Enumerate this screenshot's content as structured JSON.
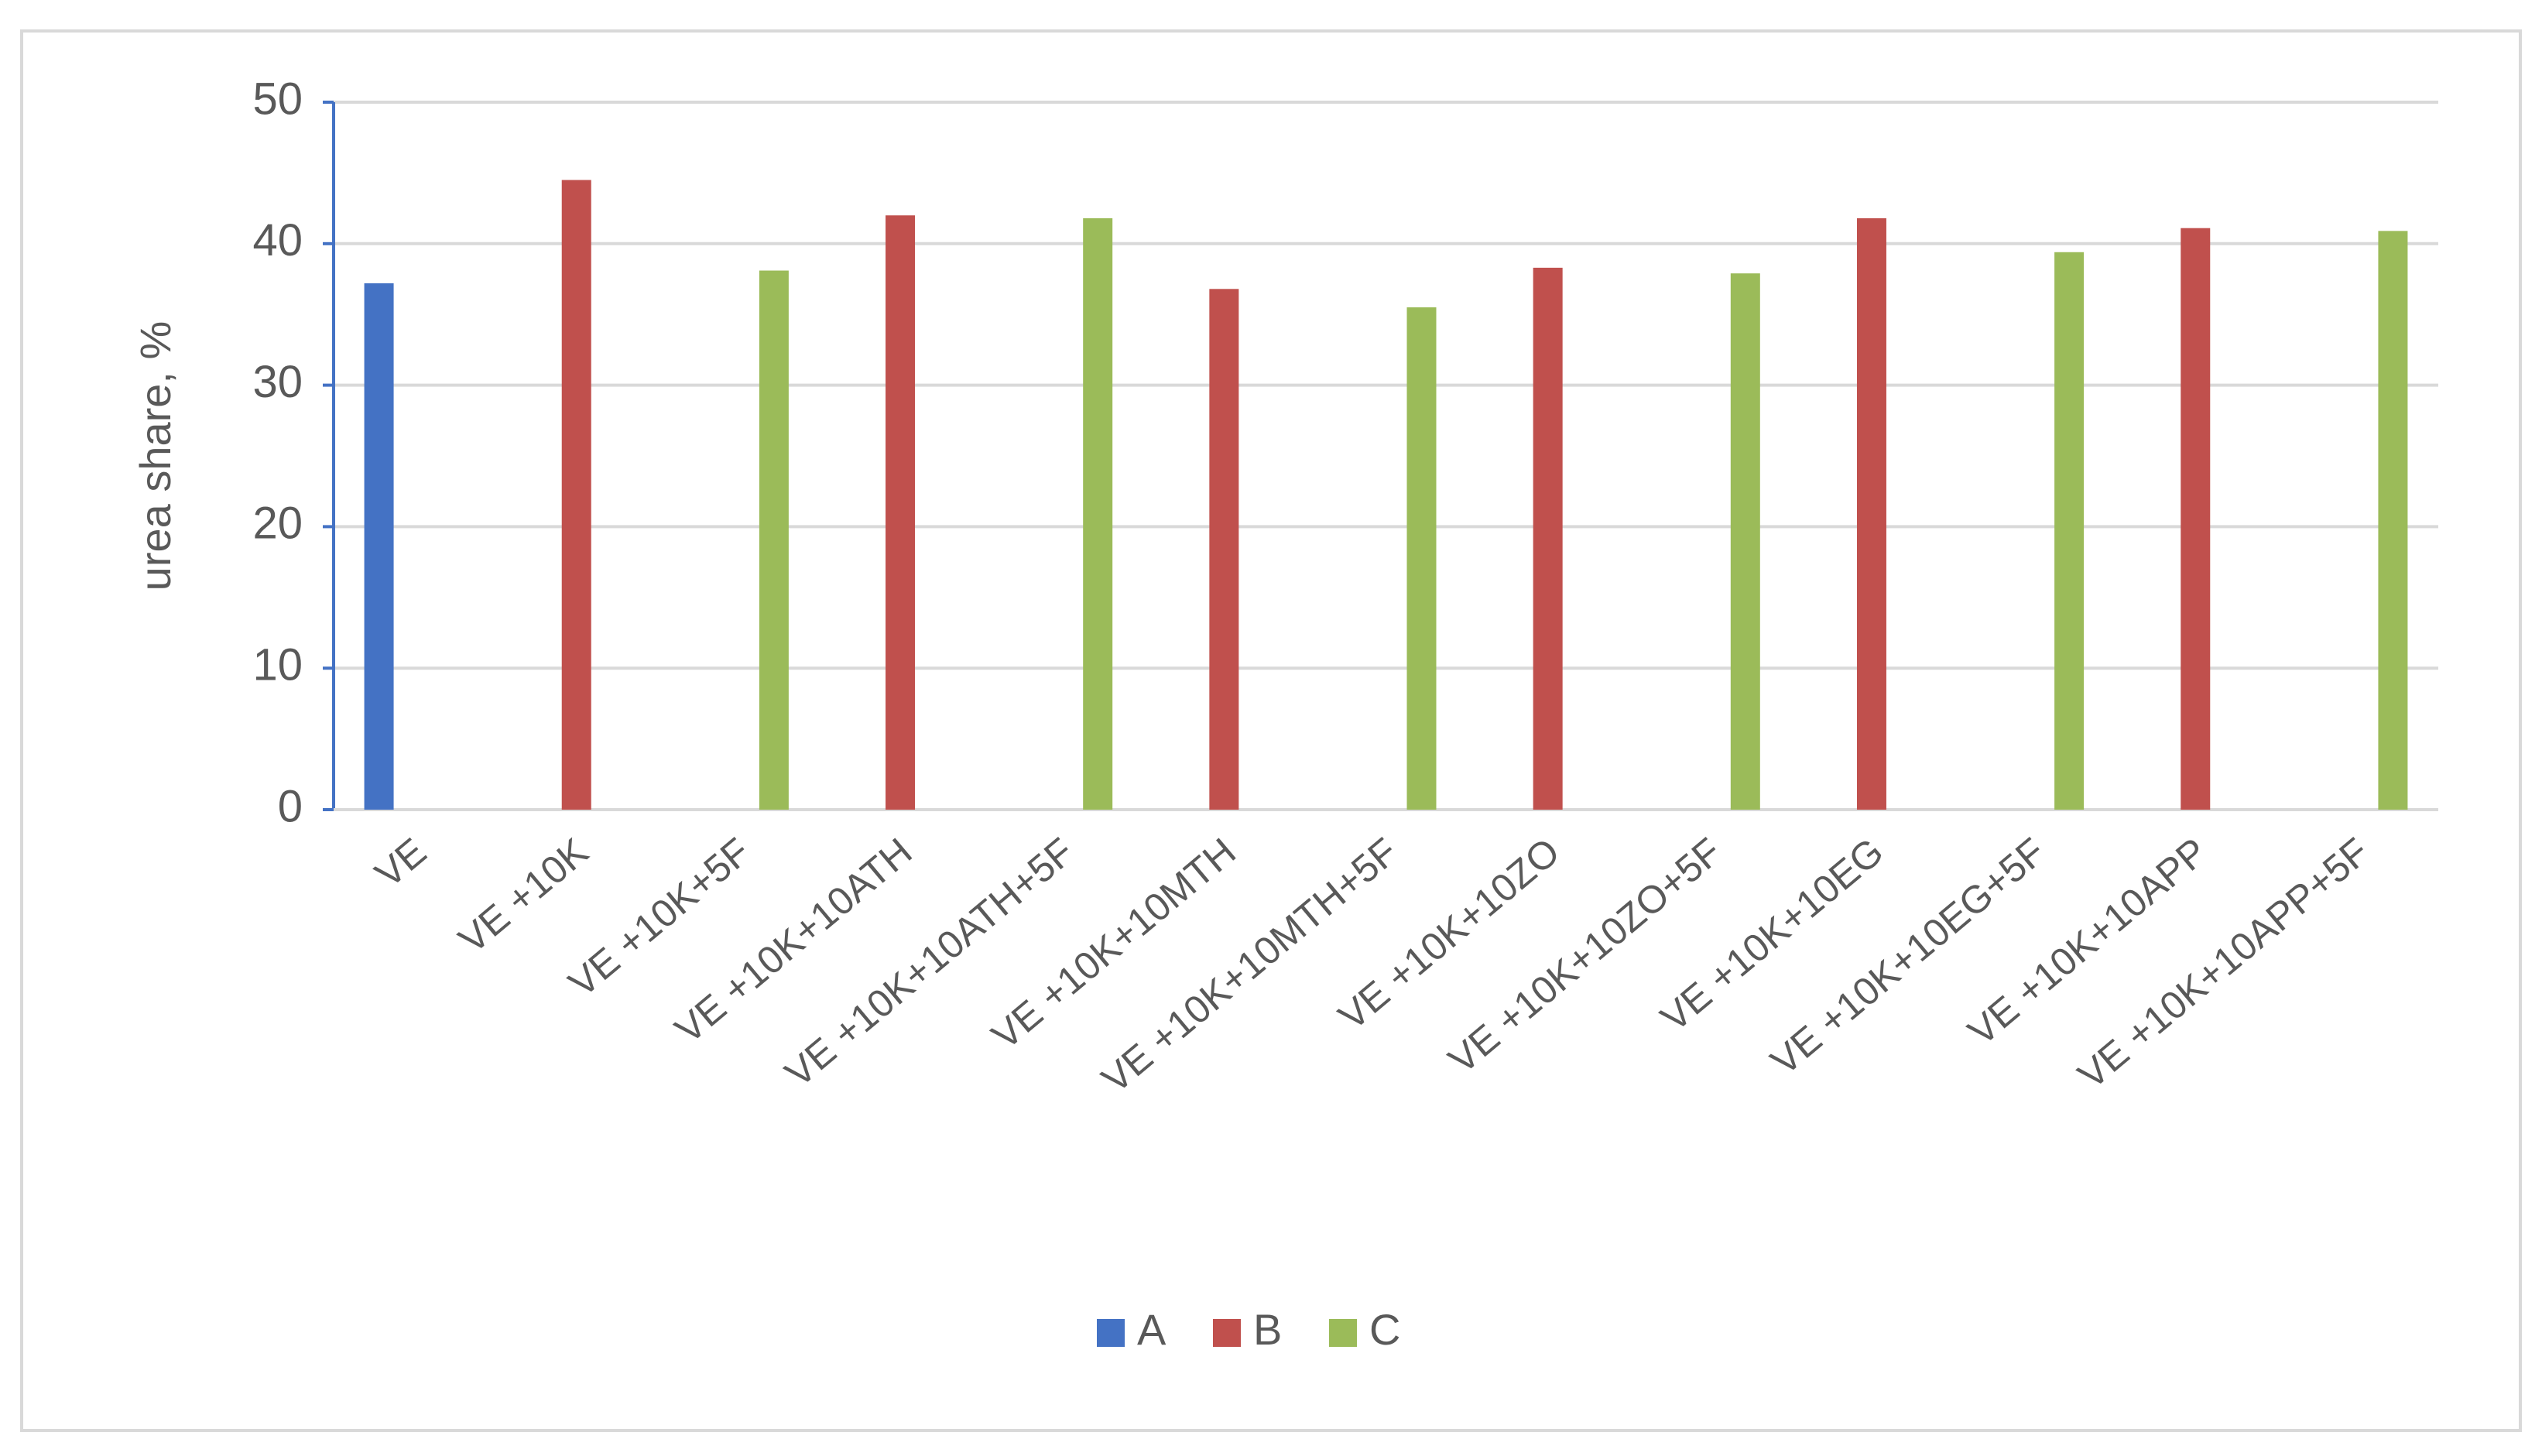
{
  "chart_data": {
    "type": "bar",
    "y_label": "urea share, %",
    "categories": [
      "VE",
      "VE +10K",
      "VE +10K+5F",
      "VE +10K+10ATH",
      "VE +10K+10ATH+5F",
      "VE +10K+10MTH",
      "VE +10K+10MTH+5F",
      "VE +10K+10ZO",
      "VE +10K+10ZO+5F",
      "VE +10K+10EG",
      "VE +10K+10EG+5F",
      "VE +10K+10APP",
      "VE +10K+10APP+5F"
    ],
    "series": [
      {
        "name": "A",
        "color": "#4472c4",
        "values": [
          37.2,
          null,
          null,
          null,
          null,
          null,
          null,
          null,
          null,
          null,
          null,
          null,
          null
        ]
      },
      {
        "name": "B",
        "color": "#c0504d",
        "values": [
          null,
          44.5,
          null,
          42.0,
          null,
          36.8,
          null,
          38.3,
          null,
          41.8,
          null,
          41.1,
          null
        ]
      },
      {
        "name": "C",
        "color": "#9bbb59",
        "values": [
          null,
          null,
          38.1,
          null,
          41.8,
          null,
          35.5,
          null,
          37.9,
          null,
          39.4,
          null,
          40.9
        ]
      }
    ],
    "ylim": [
      0,
      50
    ],
    "yticks": [
      0,
      10,
      20,
      30,
      40,
      50
    ],
    "grid": true,
    "legend": "bottom"
  }
}
